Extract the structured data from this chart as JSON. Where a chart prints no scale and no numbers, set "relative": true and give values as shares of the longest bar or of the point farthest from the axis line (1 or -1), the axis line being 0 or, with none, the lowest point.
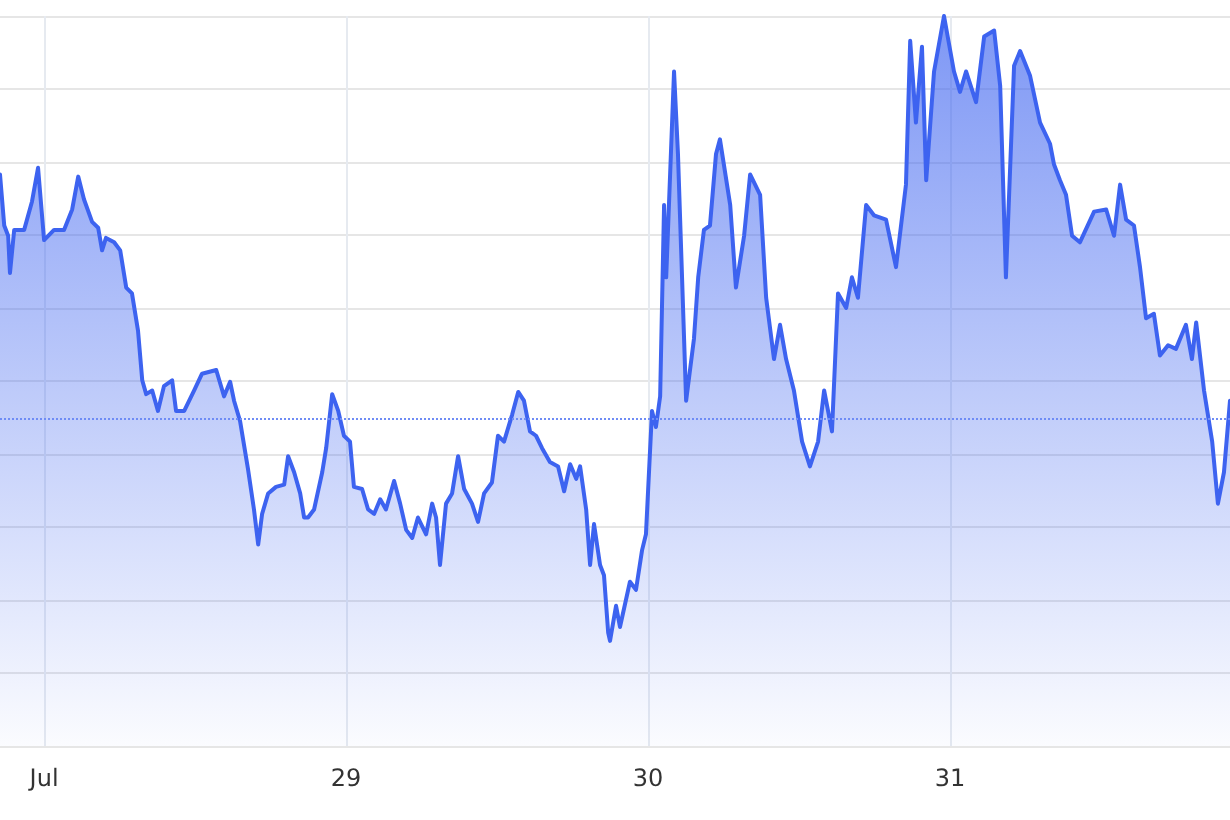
{
  "chart_data": {
    "type": "area",
    "relative": true,
    "grid": true,
    "line_style": "solid",
    "marker": "none",
    "xlim": [
      27.854,
      31.927
    ],
    "xticks": [
      {
        "value": 28,
        "label": "Jul"
      },
      29,
      30,
      31
    ],
    "ref_lines": [
      {
        "axis": "y",
        "value": 0.45,
        "color": "#6f8cf5",
        "line_style": "dotted"
      }
    ],
    "series": [
      {
        "color": "#3d63f0",
        "x": [
          27.854,
          27.868,
          27.881,
          27.887,
          27.901,
          27.934,
          27.96,
          27.98,
          28,
          28.033,
          28.066,
          28.093,
          28.113,
          28.132,
          28.159,
          28.179,
          28.192,
          28.205,
          28.232,
          28.252,
          28.272,
          28.291,
          28.311,
          28.325,
          28.338,
          28.358,
          28.377,
          28.397,
          28.424,
          28.437,
          28.464,
          28.497,
          28.523,
          28.57,
          28.596,
          28.616,
          28.629,
          28.649,
          28.675,
          28.695,
          28.709,
          28.722,
          28.742,
          28.768,
          28.795,
          28.808,
          28.828,
          28.848,
          28.861,
          28.874,
          28.894,
          28.921,
          28.934,
          28.954,
          28.974,
          28.993,
          29.013,
          29.026,
          29.053,
          29.073,
          29.093,
          29.113,
          29.132,
          29.159,
          29.179,
          29.199,
          29.219,
          29.238,
          29.265,
          29.285,
          29.298,
          29.311,
          29.331,
          29.351,
          29.371,
          29.391,
          29.417,
          29.437,
          29.457,
          29.483,
          29.503,
          29.523,
          29.55,
          29.57,
          29.589,
          29.609,
          29.629,
          29.649,
          29.675,
          29.702,
          29.722,
          29.742,
          29.762,
          29.775,
          29.795,
          29.808,
          29.821,
          29.841,
          29.854,
          29.868,
          29.874,
          29.894,
          29.907,
          29.94,
          29.96,
          29.98,
          29.993,
          30.013,
          30.026,
          30.04,
          30.053,
          30.06,
          30.086,
          30.099,
          30.126,
          30.152,
          30.166,
          30.185,
          30.205,
          30.225,
          30.238,
          30.272,
          30.291,
          30.318,
          30.338,
          30.371,
          30.391,
          30.417,
          30.437,
          30.457,
          30.483,
          30.51,
          30.536,
          30.563,
          30.583,
          30.609,
          30.629,
          30.656,
          30.675,
          30.695,
          30.722,
          30.748,
          30.788,
          30.821,
          30.854,
          30.868,
          30.887,
          30.907,
          30.921,
          30.947,
          30.98,
          31.013,
          31.033,
          31.053,
          31.086,
          31.113,
          31.146,
          31.166,
          31.185,
          31.212,
          31.232,
          31.265,
          31.298,
          31.331,
          31.344,
          31.364,
          31.384,
          31.404,
          31.43,
          31.477,
          31.517,
          31.543,
          31.563,
          31.583,
          31.609,
          31.629,
          31.649,
          31.675,
          31.695,
          31.722,
          31.748,
          31.781,
          31.801,
          31.815,
          31.841,
          31.868,
          31.887,
          31.907,
          31.927
        ],
        "values": [
          0.783,
          0.713,
          0.699,
          0.648,
          0.707,
          0.707,
          0.746,
          0.792,
          0.693,
          0.707,
          0.707,
          0.735,
          0.78,
          0.749,
          0.718,
          0.71,
          0.679,
          0.696,
          0.69,
          0.679,
          0.628,
          0.62,
          0.569,
          0.501,
          0.482,
          0.487,
          0.459,
          0.493,
          0.501,
          0.459,
          0.459,
          0.487,
          0.51,
          0.515,
          0.479,
          0.499,
          0.473,
          0.445,
          0.38,
          0.324,
          0.276,
          0.318,
          0.346,
          0.355,
          0.358,
          0.397,
          0.375,
          0.346,
          0.313,
          0.313,
          0.324,
          0.375,
          0.408,
          0.482,
          0.459,
          0.425,
          0.417,
          0.355,
          0.352,
          0.324,
          0.318,
          0.338,
          0.324,
          0.363,
          0.332,
          0.296,
          0.285,
          0.313,
          0.29,
          0.332,
          0.313,
          0.248,
          0.332,
          0.346,
          0.397,
          0.352,
          0.332,
          0.307,
          0.346,
          0.361,
          0.425,
          0.417,
          0.454,
          0.485,
          0.473,
          0.431,
          0.425,
          0.408,
          0.389,
          0.383,
          0.349,
          0.386,
          0.366,
          0.383,
          0.324,
          0.248,
          0.304,
          0.248,
          0.234,
          0.155,
          0.144,
          0.192,
          0.163,
          0.225,
          0.214,
          0.268,
          0.29,
          0.459,
          0.437,
          0.479,
          0.741,
          0.642,
          0.924,
          0.811,
          0.473,
          0.558,
          0.642,
          0.707,
          0.713,
          0.811,
          0.831,
          0.741,
          0.628,
          0.699,
          0.783,
          0.755,
          0.614,
          0.53,
          0.577,
          0.53,
          0.487,
          0.417,
          0.383,
          0.417,
          0.487,
          0.431,
          0.62,
          0.6,
          0.642,
          0.614,
          0.741,
          0.727,
          0.721,
          0.656,
          0.769,
          0.966,
          0.854,
          0.958,
          0.775,
          0.924,
          1,
          0.924,
          0.896,
          0.924,
          0.882,
          0.972,
          0.98,
          0.904,
          0.642,
          0.932,
          0.952,
          0.918,
          0.854,
          0.825,
          0.797,
          0.775,
          0.755,
          0.699,
          0.69,
          0.732,
          0.735,
          0.699,
          0.769,
          0.721,
          0.713,
          0.656,
          0.586,
          0.592,
          0.535,
          0.549,
          0.544,
          0.577,
          0.53,
          0.58,
          0.487,
          0.417,
          0.332,
          0.375,
          0.473
        ]
      }
    ]
  }
}
